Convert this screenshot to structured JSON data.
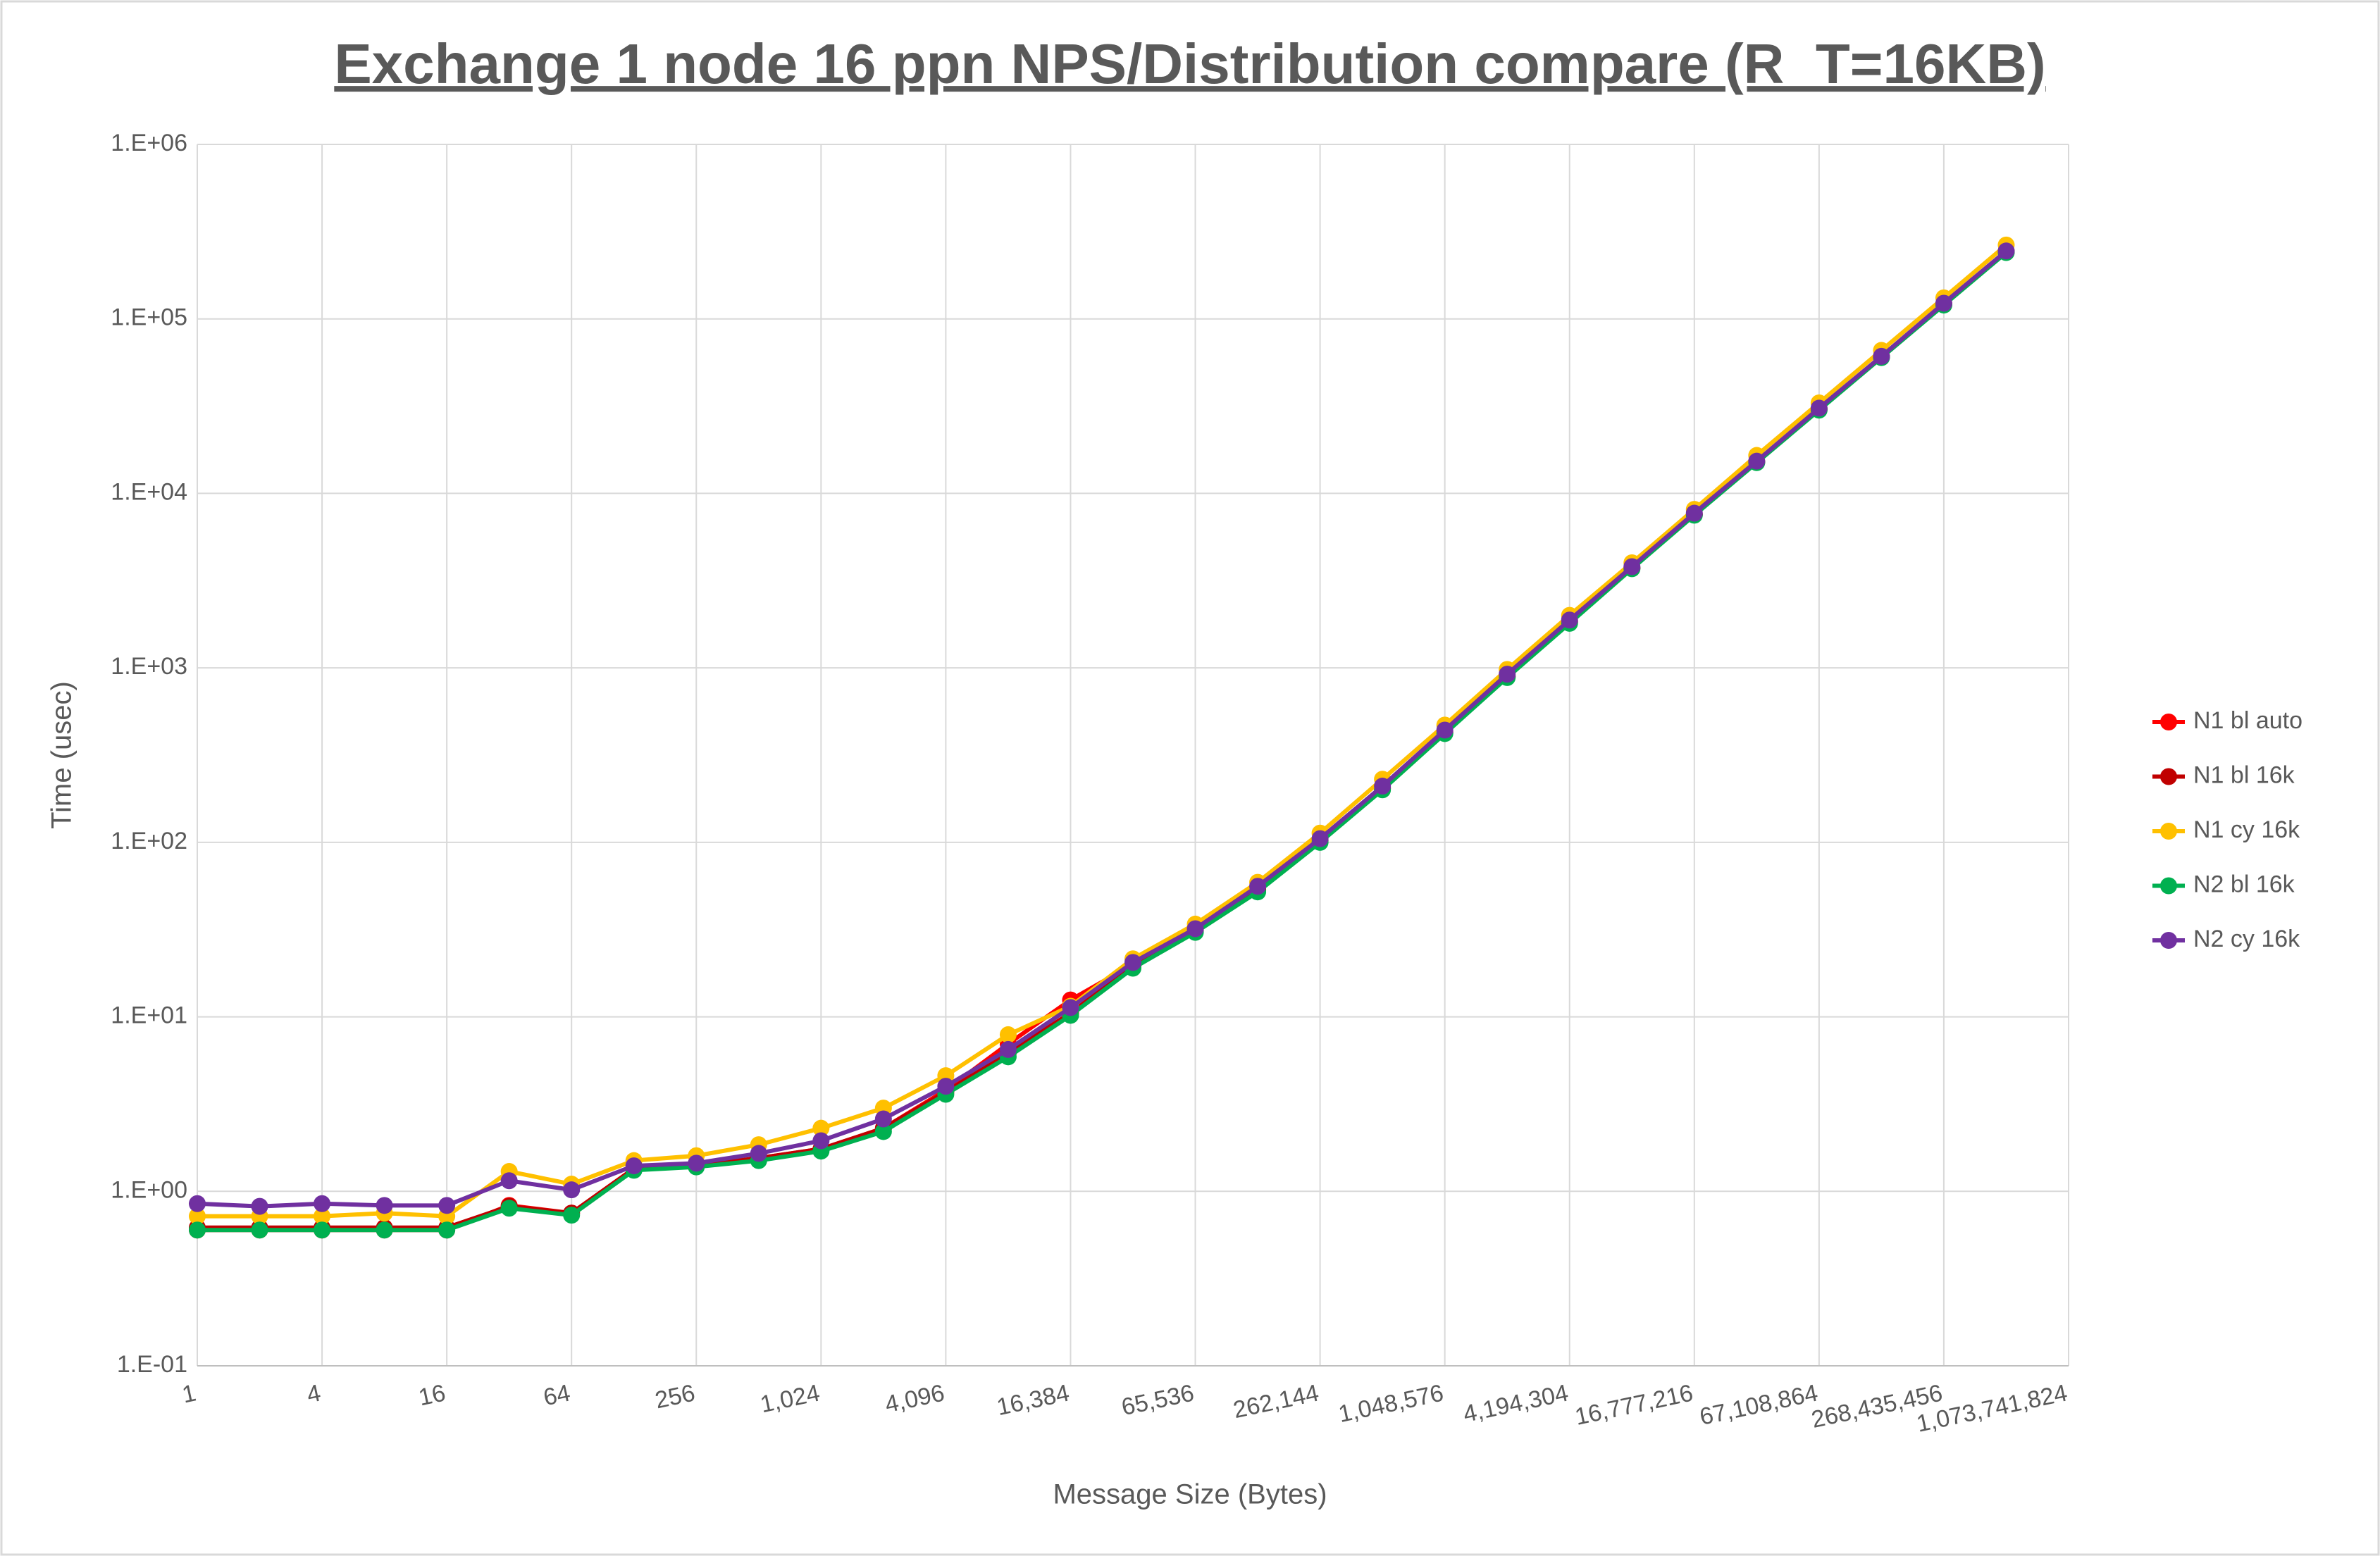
{
  "chart_data": {
    "type": "line",
    "title": "Exchange 1 node 16 ppn NPS/Distribution compare (R_T=16KB)",
    "x_label": "Message Size (Bytes)",
    "y_label": "Time (usec)",
    "x_scale": "log2",
    "y_scale": "log",
    "grid": true,
    "legend": "right",
    "x": [
      1,
      2,
      4,
      8,
      16,
      32,
      64,
      128,
      256,
      512,
      1024,
      2048,
      4096,
      8192,
      16384,
      32768,
      65536,
      131072,
      262144,
      524288,
      1048576,
      2097152,
      4194304,
      8388608,
      16777216,
      33554432,
      67108864,
      134217728,
      268435456,
      536870912
    ],
    "xlim": [
      1,
      1073741824
    ],
    "xticks": [
      1,
      4,
      16,
      64,
      256,
      {
        "value": 1024,
        "label": "1,024"
      },
      {
        "value": 4096,
        "label": "4,096"
      },
      {
        "value": 16384,
        "label": "16,384"
      },
      {
        "value": 65536,
        "label": "65,536"
      },
      {
        "value": 262144,
        "label": "262,144"
      },
      {
        "value": 1048576,
        "label": "1,048,576"
      },
      {
        "value": 4194304,
        "label": "4,194,304"
      },
      {
        "value": 16777216,
        "label": "16,777,216"
      },
      {
        "value": 67108864,
        "label": "67,108,864"
      },
      {
        "value": 268435456,
        "label": "268,435,456"
      },
      {
        "value": 1073741824,
        "label": "1,073,741,824"
      }
    ],
    "ylim": [
      0.1,
      1000000
    ],
    "yticks": [
      {
        "value": 0.1,
        "label": "1.E-01"
      },
      {
        "value": 1,
        "label": "1.E+00"
      },
      {
        "value": 10,
        "label": "1.E+01"
      },
      {
        "value": 100,
        "label": "1.E+02"
      },
      {
        "value": 1000,
        "label": "1.E+03"
      },
      {
        "value": 10000,
        "label": "1.E+04"
      },
      {
        "value": 100000,
        "label": "1.E+05"
      },
      {
        "value": 1000000,
        "label": "1.E+06"
      }
    ],
    "series": [
      {
        "name": "N1 bl auto",
        "color": "#ff0000",
        "values": [
          0.6,
          0.6,
          0.6,
          0.6,
          0.6,
          0.83,
          0.75,
          1.35,
          1.4,
          1.55,
          1.75,
          2.3,
          3.8,
          7.0,
          12.5,
          20,
          31.5,
          54,
          103,
          205,
          430,
          900,
          1850,
          3750,
          7600,
          15200,
          30500,
          61000,
          122000,
          244000
        ]
      },
      {
        "name": "N1 bl 16k",
        "color": "#c00000",
        "values": [
          0.62,
          0.62,
          0.62,
          0.62,
          0.62,
          0.82,
          0.75,
          1.35,
          1.4,
          1.55,
          1.75,
          2.3,
          3.7,
          6.2,
          10.5,
          19.5,
          31,
          53,
          102,
          203,
          425,
          890,
          1830,
          3720,
          7550,
          15100,
          30300,
          60500,
          121000,
          242000
        ]
      },
      {
        "name": "N1 cy 16k",
        "color": "#ffc000",
        "values": [
          0.72,
          0.72,
          0.72,
          0.75,
          0.72,
          1.3,
          1.1,
          1.5,
          1.6,
          1.85,
          2.3,
          3.0,
          4.6,
          7.9,
          11.5,
          21.5,
          34,
          59,
          113,
          230,
          470,
          980,
          2000,
          4000,
          8100,
          16500,
          33000,
          66000,
          132000,
          265000
        ]
      },
      {
        "name": "N2 bl 16k",
        "color": "#00b050",
        "values": [
          0.6,
          0.6,
          0.6,
          0.6,
          0.6,
          0.8,
          0.73,
          1.32,
          1.38,
          1.5,
          1.7,
          2.2,
          3.6,
          5.9,
          10.2,
          19,
          30.5,
          52,
          100,
          200,
          420,
          880,
          1800,
          3700,
          7500,
          15000,
          30000,
          60000,
          120000,
          240000
        ]
      },
      {
        "name": "N2 cy 16k",
        "color": "#7030a0",
        "values": [
          0.85,
          0.82,
          0.85,
          0.83,
          0.83,
          1.15,
          1.02,
          1.4,
          1.45,
          1.65,
          1.95,
          2.6,
          4.0,
          6.5,
          11.3,
          20.5,
          32,
          56,
          105,
          210,
          440,
          920,
          1880,
          3800,
          7700,
          15300,
          30800,
          61000,
          123000,
          245000
        ]
      }
    ]
  }
}
